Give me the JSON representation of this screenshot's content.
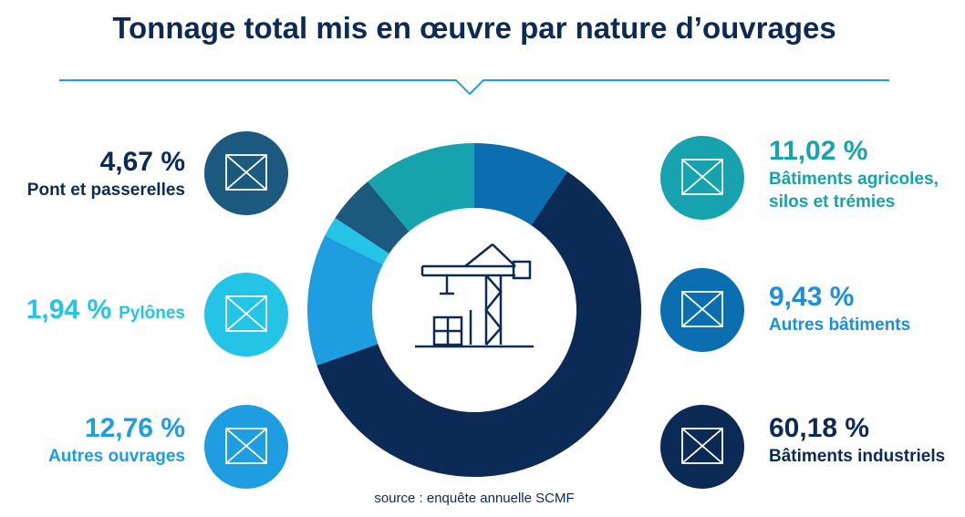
{
  "chart_data": {
    "type": "donut",
    "title": "Tonnage total mis en œuvre par nature d’ouvrages",
    "categories": [
      "Autres bâtiments",
      "Bâtiments industriels",
      "Autres ouvrages",
      "Pylônes",
      "Pont et passerelles",
      "Bâtiments agricoles, silos et trémies"
    ],
    "values": [
      9.43,
      60.18,
      12.76,
      1.94,
      4.67,
      11.02
    ],
    "value_labels": [
      "9,43 %",
      "60,18 %",
      "12,76 %",
      "1,94 %",
      "4,67 %",
      "11,02 %"
    ],
    "colors": [
      "#0a6eb0",
      "#0b2a55",
      "#1e9ee0",
      "#23c4e6",
      "#1b5a7e",
      "#17a3ad"
    ],
    "source": "source : enquête annuelle SCMF"
  }
}
